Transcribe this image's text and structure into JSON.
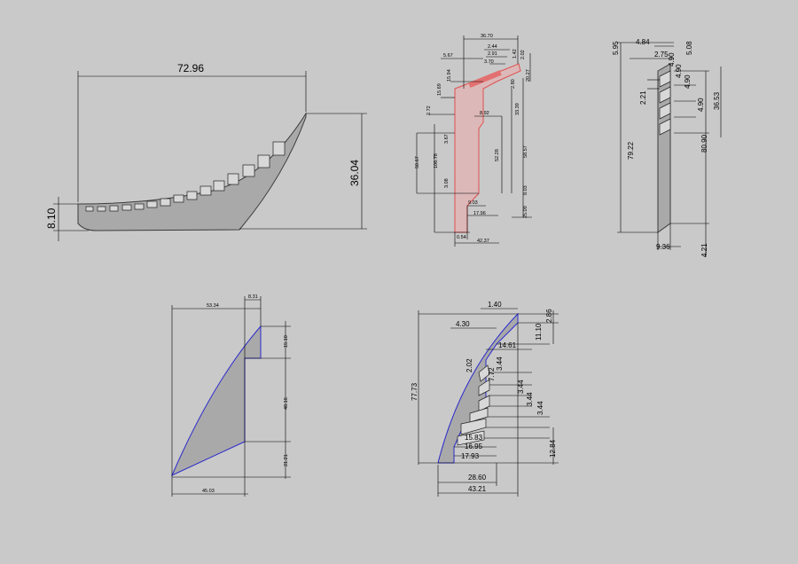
{
  "views": {
    "side": {
      "width": "72.96",
      "height": "36.04",
      "base": "8.10"
    },
    "section": {
      "labels": [
        "36.70",
        "2.44",
        "2.91",
        "3.70",
        "1.42",
        "2.02",
        "5.67",
        "15.94",
        "15.69",
        "2.72",
        "2.80",
        "20.27",
        "8.92",
        "33.39",
        "3.67",
        "50.67",
        "106.78",
        "52.28",
        "58.57",
        "3.08",
        "8.03",
        "9.03",
        "17.96",
        "25.09",
        "0.54",
        "42.37"
      ]
    },
    "edge": {
      "labels": [
        "5.95",
        "4.84",
        "5.08",
        "2.75",
        "4.90",
        "4.90",
        "4.90",
        "2.21",
        "4.90",
        "36.53",
        "79.22",
        "80.90",
        "9.36",
        "4.21"
      ]
    },
    "front_left": {
      "labels": [
        "8.31",
        "53.34",
        "15.10",
        "48.16",
        "21.21",
        "45.03"
      ]
    },
    "front_right": {
      "labels": [
        "1.40",
        "2.86",
        "4.30",
        "11.10",
        "14.61",
        "2.02",
        "7.72",
        "3.44",
        "3.44",
        "3.44",
        "3.44",
        "77.73",
        "15.83",
        "16.95",
        "17.93",
        "12.84",
        "28.60",
        "43.21"
      ]
    }
  }
}
